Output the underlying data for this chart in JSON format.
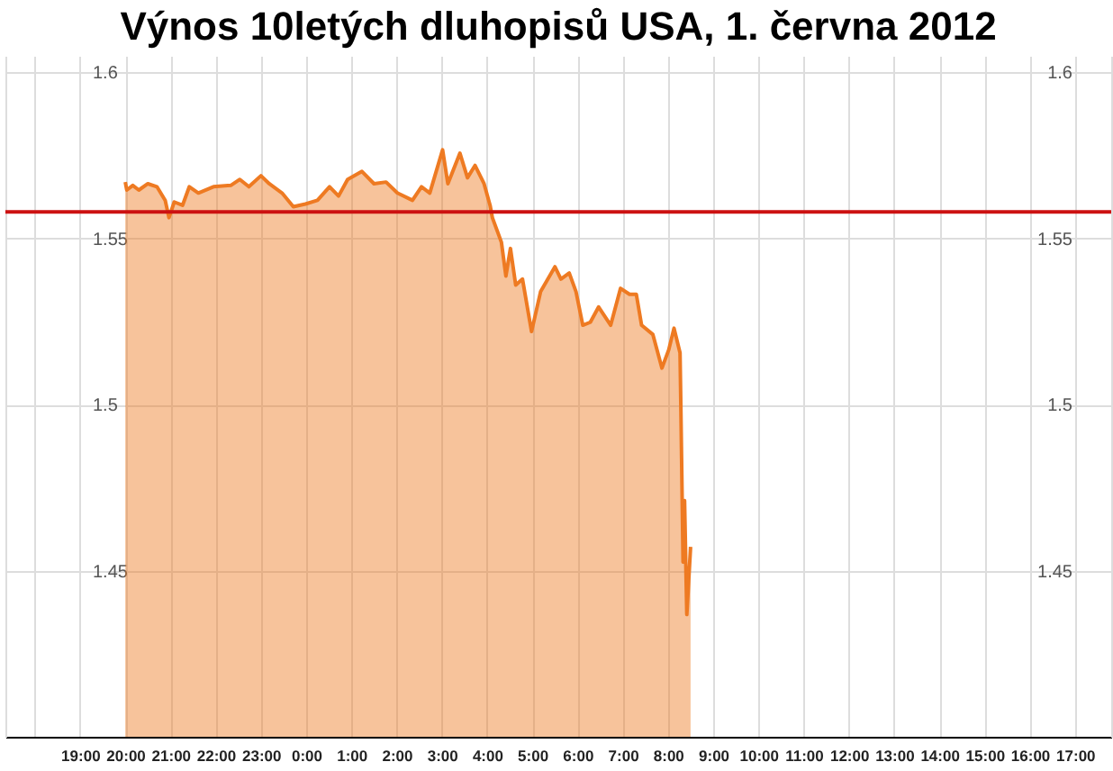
{
  "chart_data": {
    "type": "area",
    "title": "Výnos 10letých dluhopisů USA, 1. června 2012",
    "x": [
      "2012-05-31T20:00",
      "2012-05-31T20:02",
      "2012-05-31T20:10",
      "2012-05-31T20:18",
      "2012-05-31T20:30",
      "2012-05-31T20:42",
      "2012-05-31T20:53",
      "2012-05-31T20:58",
      "2012-05-31T21:05",
      "2012-05-31T21:16",
      "2012-05-31T21:25",
      "2012-05-31T21:37",
      "2012-05-31T21:57",
      "2012-05-31T22:20",
      "2012-05-31T22:32",
      "2012-05-31T22:44",
      "2012-05-31T23:00",
      "2012-05-31T23:11",
      "2012-05-31T23:28",
      "2012-05-31T23:43",
      "2012-05-31T23:59",
      "2012-06-01T00:15",
      "2012-06-01T00:31",
      "2012-06-01T00:43",
      "2012-06-01T00:55",
      "2012-06-01T01:14",
      "2012-06-01T01:30",
      "2012-06-01T01:46",
      "2012-06-01T02:01",
      "2012-06-01T02:21",
      "2012-06-01T02:33",
      "2012-06-01T02:44",
      "2012-06-01T03:01",
      "2012-06-01T03:08",
      "2012-06-01T03:24",
      "2012-06-01T03:34",
      "2012-06-01T03:44",
      "2012-06-01T03:56",
      "2012-06-01T04:04",
      "2012-06-01T04:07",
      "2012-06-01T04:19",
      "2012-06-01T04:25",
      "2012-06-01T04:31",
      "2012-06-01T04:38",
      "2012-06-01T04:47",
      "2012-06-01T04:59",
      "2012-06-01T05:11",
      "2012-06-01T05:30",
      "2012-06-01T05:38",
      "2012-06-01T05:49",
      "2012-06-01T05:58",
      "2012-06-01T06:07",
      "2012-06-01T06:17",
      "2012-06-01T06:28",
      "2012-06-01T06:44",
      "2012-06-01T06:57",
      "2012-06-01T07:09",
      "2012-06-01T07:18",
      "2012-06-01T07:25",
      "2012-06-01T07:40",
      "2012-06-01T07:52",
      "2012-06-01T08:01",
      "2012-06-01T08:08",
      "2012-06-01T08:16",
      "2012-06-01T08:17",
      "2012-06-01T08:20",
      "2012-06-01T08:22",
      "2012-06-01T08:25",
      "2012-06-01T08:30"
    ],
    "series": [
      {
        "color": "#ee7a22",
        "values": [
          1.567,
          1.5646,
          1.566,
          1.5646,
          1.5665,
          1.5656,
          1.5615,
          1.5563,
          1.561,
          1.56,
          1.5656,
          1.5637,
          1.5656,
          1.566,
          1.5678,
          1.5656,
          1.5689,
          1.5665,
          1.5637,
          1.5596,
          1.5604,
          1.5615,
          1.5656,
          1.5628,
          1.5678,
          1.5702,
          1.5665,
          1.567,
          1.5637,
          1.5615,
          1.5656,
          1.5637,
          1.5767,
          1.5665,
          1.5757,
          1.5683,
          1.572,
          1.5665,
          1.56,
          1.5563,
          1.5489,
          1.5387,
          1.547,
          1.536,
          1.5378,
          1.522,
          1.534,
          1.5415,
          1.5378,
          1.5396,
          1.534,
          1.5239,
          1.5248,
          1.5294,
          1.5239,
          1.535,
          1.5332,
          1.5332,
          1.5239,
          1.5211,
          1.511,
          1.5165,
          1.523,
          1.5156,
          1.5007,
          1.4526,
          1.4711,
          1.4368,
          1.4572
        ]
      }
    ],
    "xlim": [
      "2012-05-31T17:21",
      "2012-06-01T17:48"
    ],
    "xticks": [
      {
        "value": "2012-05-31T18:00",
        "label": null
      },
      {
        "value": "2012-05-31T19:00",
        "label": "19:00"
      },
      {
        "value": "2012-05-31T20:00",
        "label": "20:00"
      },
      {
        "value": "2012-05-31T21:00",
        "label": "21:00"
      },
      {
        "value": "2012-05-31T22:00",
        "label": "22:00"
      },
      {
        "value": "2012-05-31T23:00",
        "label": "23:00"
      },
      {
        "value": "2012-06-01T00:00",
        "label": "0:00"
      },
      {
        "value": "2012-06-01T01:00",
        "label": "1:00"
      },
      {
        "value": "2012-06-01T02:00",
        "label": "2:00"
      },
      {
        "value": "2012-06-01T03:00",
        "label": "3:00"
      },
      {
        "value": "2012-06-01T04:00",
        "label": "4:00"
      },
      {
        "value": "2012-06-01T05:00",
        "label": "5:00"
      },
      {
        "value": "2012-06-01T06:00",
        "label": "6:00"
      },
      {
        "value": "2012-06-01T07:00",
        "label": "7:00"
      },
      {
        "value": "2012-06-01T08:00",
        "label": "8:00"
      },
      {
        "value": "2012-06-01T09:00",
        "label": "9:00"
      },
      {
        "value": "2012-06-01T10:00",
        "label": "10:00"
      },
      {
        "value": "2012-06-01T11:00",
        "label": "11:00"
      },
      {
        "value": "2012-06-01T12:00",
        "label": "12:00"
      },
      {
        "value": "2012-06-01T13:00",
        "label": "13:00"
      },
      {
        "value": "2012-06-01T14:00",
        "label": "14:00"
      },
      {
        "value": "2012-06-01T15:00",
        "label": "15:00"
      },
      {
        "value": "2012-06-01T16:00",
        "label": "16:00"
      },
      {
        "value": "2012-06-01T17:00",
        "label": "17:00"
      }
    ],
    "ylim": [
      1.4,
      1.605
    ],
    "yticks": [
      1.45,
      1.5,
      1.55,
      1.6
    ],
    "y2lim": [
      1.4,
      1.605
    ],
    "y2ticks": [
      1.45,
      1.5,
      1.55,
      1.6
    ],
    "ref_lines": [
      {
        "axis": "y",
        "value": 1.558,
        "color": "#cc1111"
      }
    ],
    "grid": true
  }
}
